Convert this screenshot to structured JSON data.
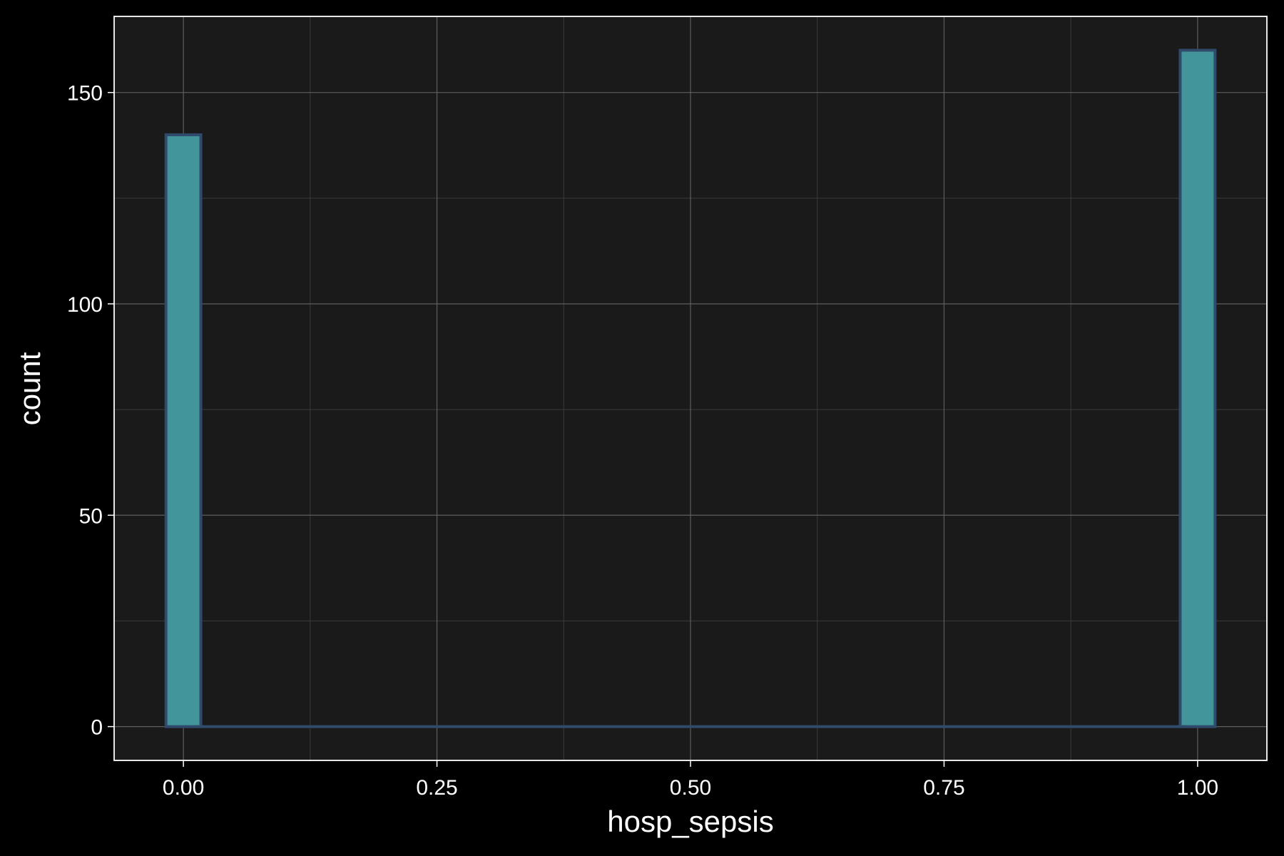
{
  "chart_data": {
    "type": "bar",
    "subtype": "histogram",
    "xlabel": "hosp_sepsis",
    "ylabel": "count",
    "xlim": [
      -0.0683,
      1.0683
    ],
    "ylim": [
      -8,
      168
    ],
    "x_ticks": [
      {
        "value": 0.0,
        "label": "0.00"
      },
      {
        "value": 0.25,
        "label": "0.25"
      },
      {
        "value": 0.5,
        "label": "0.50"
      },
      {
        "value": 0.75,
        "label": "0.75"
      },
      {
        "value": 1.0,
        "label": "1.00"
      }
    ],
    "y_ticks": [
      {
        "value": 0,
        "label": "0"
      },
      {
        "value": 50,
        "label": "50"
      },
      {
        "value": 100,
        "label": "100"
      },
      {
        "value": 150,
        "label": "150"
      }
    ],
    "bins": [
      {
        "x0": -0.0172,
        "x1": 0.0172,
        "count": 140
      },
      {
        "x0": 0.9828,
        "x1": 1.0172,
        "count": 160
      }
    ],
    "baseline": {
      "x0": -0.0172,
      "x1": 1.0172,
      "value": 0
    },
    "grid": true,
    "colors": {
      "page_background": "#000000",
      "panel_background": "#1a1a1a",
      "panel_border": "#ffffff",
      "grid_major": "#5e5e5e",
      "grid_minor": "#3a3a3a",
      "bar_fill": "#41959b",
      "bar_stroke": "#2f4a6a",
      "text": "#ffffff"
    }
  }
}
